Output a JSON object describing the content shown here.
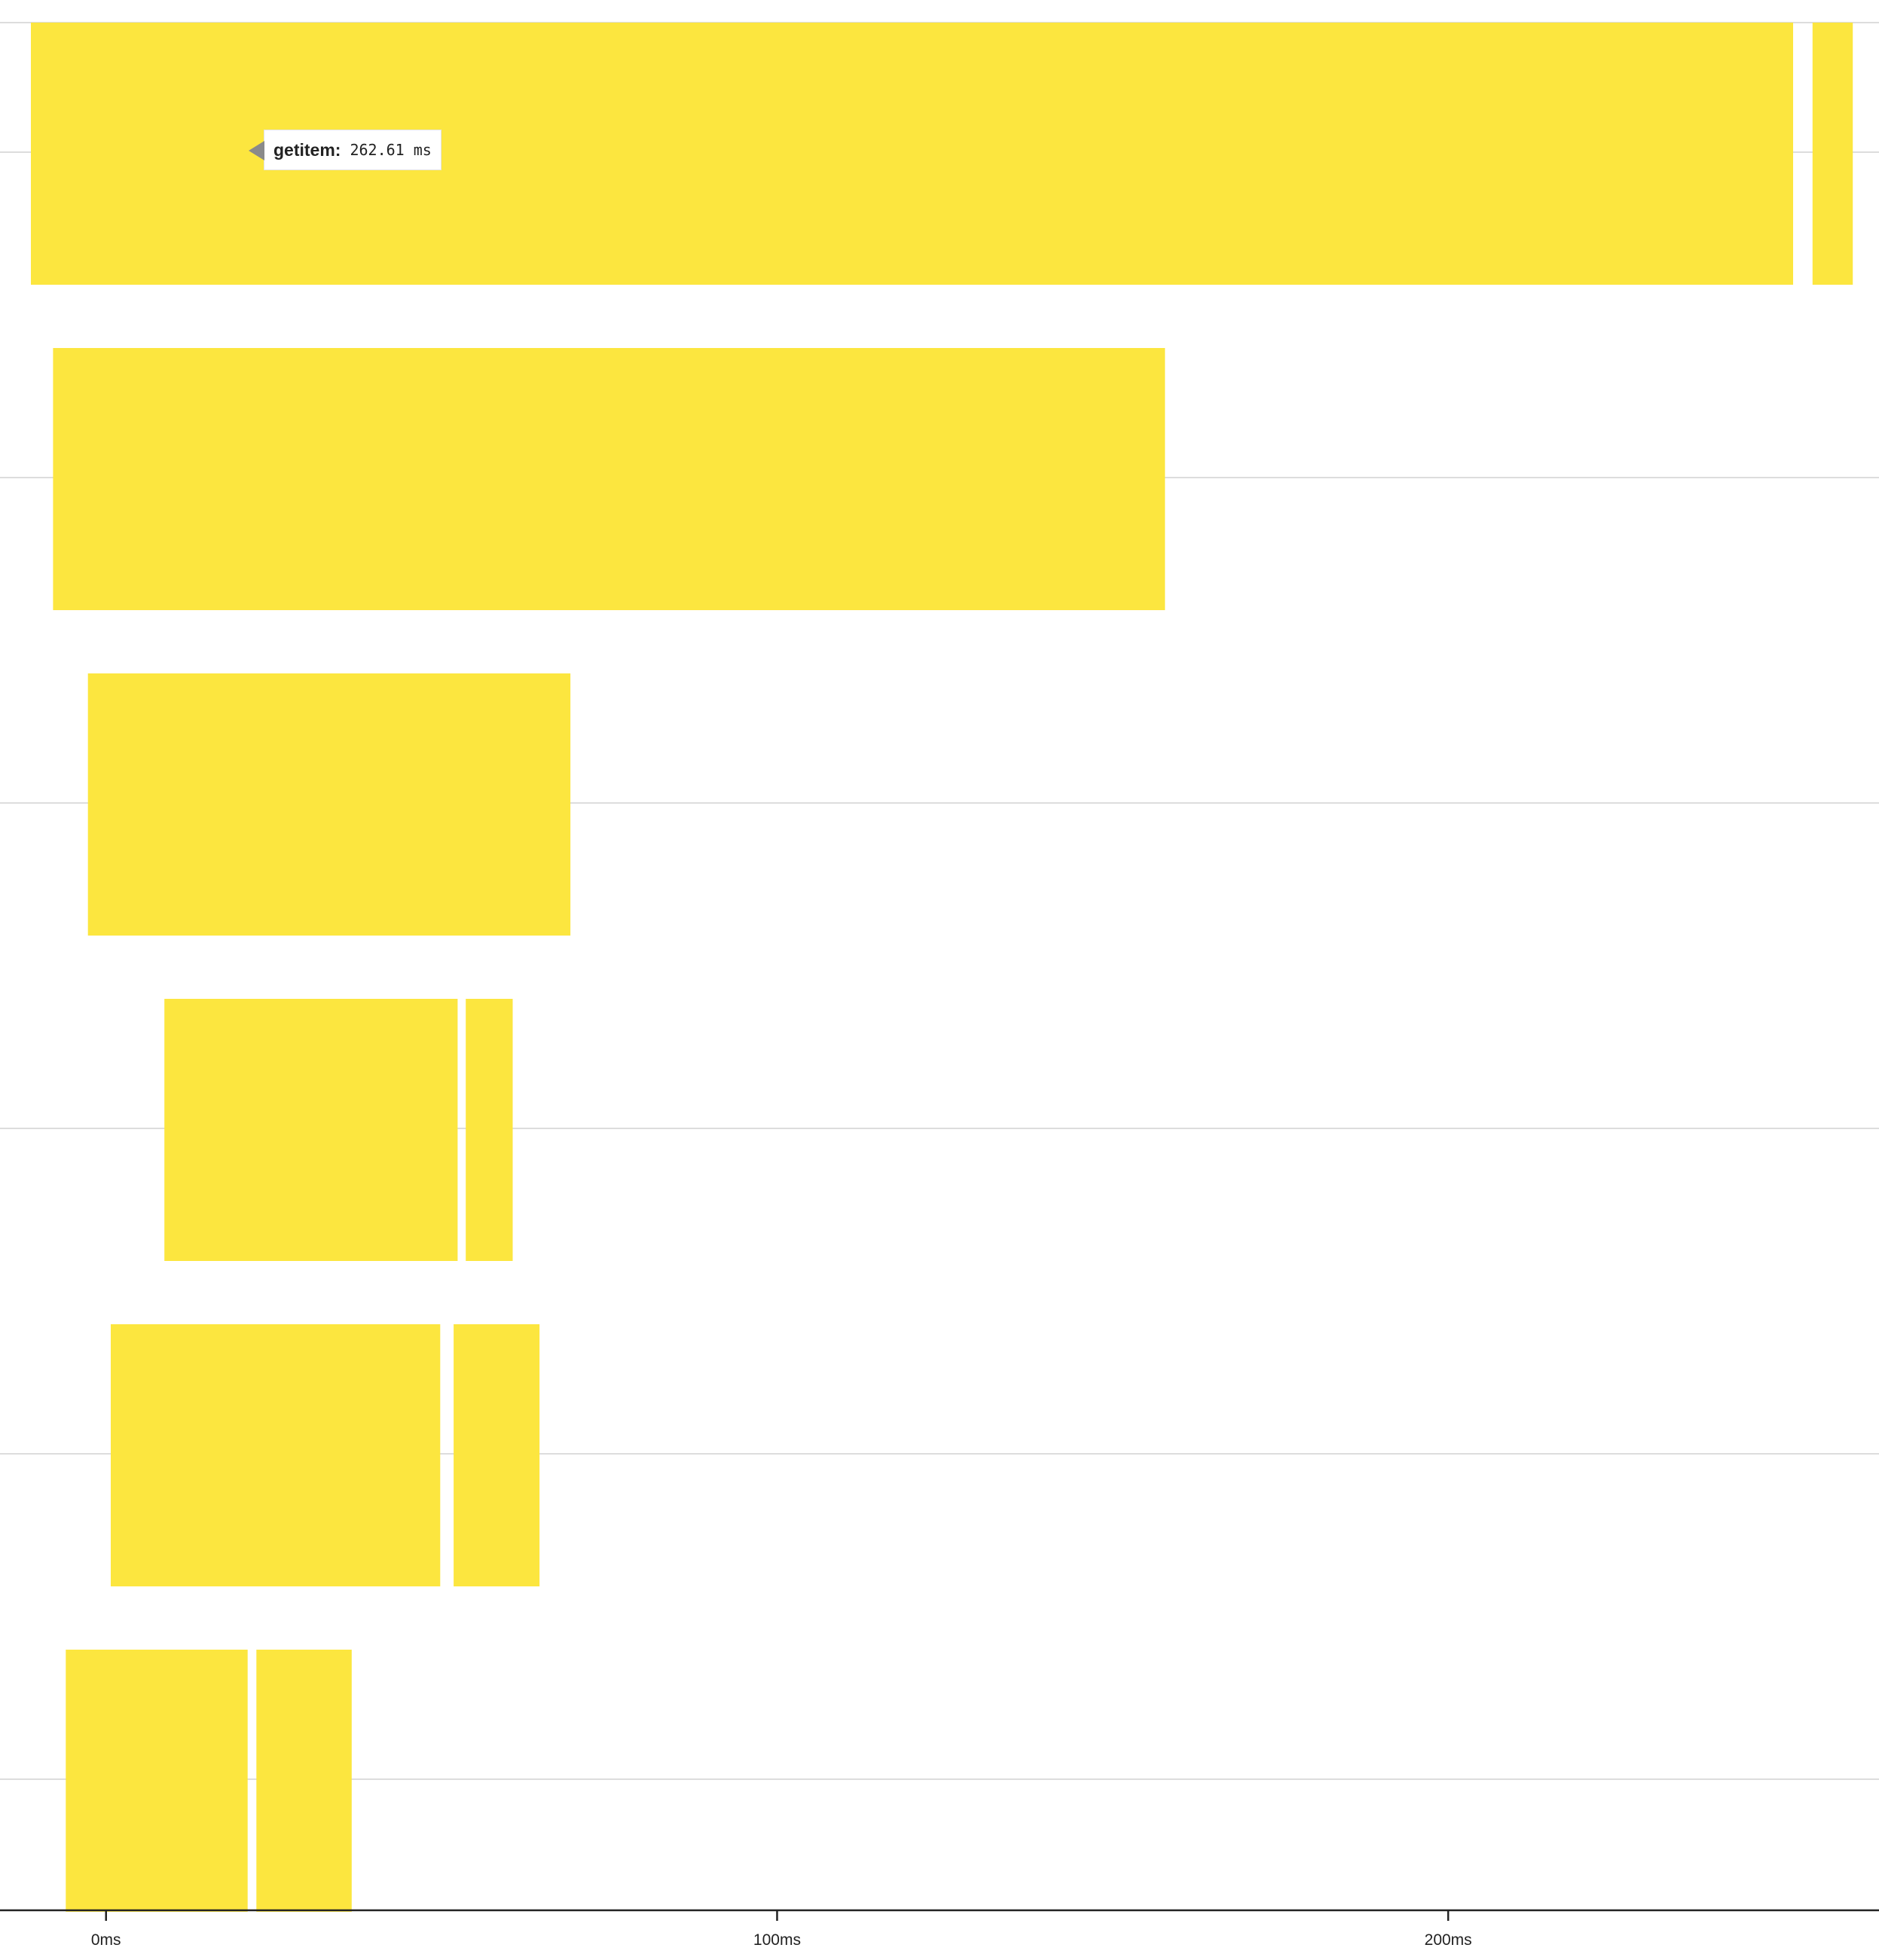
{
  "chart_data": {
    "type": "bar",
    "orientation": "horizontal",
    "unit": "ms",
    "bar_color": "#fce63f",
    "gridline_color": "#dddddd",
    "axis_color": "#222222",
    "xlim": [
      -15.8,
      264.2
    ],
    "ticks": [
      {
        "value": 0,
        "label": "0ms"
      },
      {
        "value": 100,
        "label": "100ms"
      },
      {
        "value": 200,
        "label": "200ms"
      }
    ],
    "rows": [
      {
        "segments": [
          {
            "start": -11.2,
            "end": 251.4
          },
          {
            "start": 254.3,
            "end": 260.3
          }
        ]
      },
      {
        "segments": [
          {
            "start": -7.9,
            "end": 157.8
          }
        ]
      },
      {
        "segments": [
          {
            "start": -2.7,
            "end": 69.2
          }
        ]
      },
      {
        "segments": [
          {
            "start": 8.7,
            "end": 52.4
          },
          {
            "start": 53.6,
            "end": 60.6
          }
        ]
      },
      {
        "segments": [
          {
            "start": 0.7,
            "end": 49.8
          },
          {
            "start": 51.8,
            "end": 64.6
          }
        ]
      },
      {
        "segments": [
          {
            "start": -6.0,
            "end": 21.1
          },
          {
            "start": 22.4,
            "end": 36.6
          }
        ]
      }
    ],
    "tooltip": {
      "name": "getitem:",
      "value": "262.61 ms"
    }
  }
}
